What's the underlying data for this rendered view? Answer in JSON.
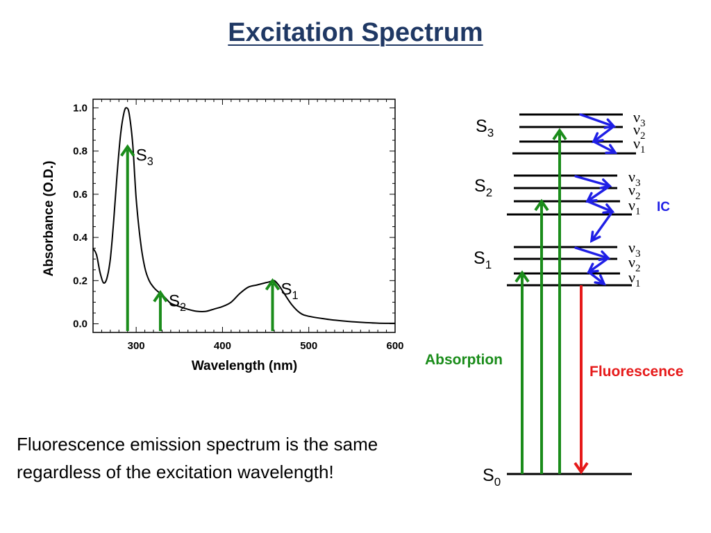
{
  "slide": {
    "title": "Excitation Spectrum",
    "caption": "Fluorescence emission spectrum is the same regardless of the excitation wavelength!"
  },
  "chart_data": {
    "type": "line",
    "xlabel": "Wavelength (nm)",
    "ylabel": "Absorbance (O.D.)",
    "xlim": [
      250,
      600
    ],
    "ylim": [
      -0.04,
      1.04
    ],
    "x_ticks": [
      "300",
      "400",
      "500",
      "600"
    ],
    "y_ticks": [
      "0.0",
      "0.2",
      "0.4",
      "0.6",
      "0.8",
      "1.0"
    ],
    "grid": false,
    "series": [
      {
        "x": [
          250,
          254,
          258,
          262,
          266,
          270,
          274,
          278,
          282,
          286,
          289,
          292,
          296,
          300,
          305,
          310,
          315,
          320,
          325,
          330,
          335,
          340,
          350,
          360,
          370,
          380,
          390,
          400,
          410,
          420,
          430,
          440,
          450,
          455,
          460,
          465,
          470,
          480,
          490,
          500,
          520,
          540,
          560,
          580,
          600
        ],
        "y": [
          0.35,
          0.32,
          0.24,
          0.19,
          0.21,
          0.3,
          0.48,
          0.7,
          0.88,
          0.98,
          1.0,
          0.97,
          0.83,
          0.58,
          0.38,
          0.26,
          0.2,
          0.17,
          0.15,
          0.135,
          0.115,
          0.095,
          0.08,
          0.067,
          0.058,
          0.057,
          0.068,
          0.08,
          0.1,
          0.14,
          0.17,
          0.18,
          0.19,
          0.195,
          0.2,
          0.18,
          0.15,
          0.09,
          0.05,
          0.035,
          0.022,
          0.013,
          0.007,
          0.003,
          0.002
        ]
      }
    ],
    "excitation_arrows": [
      {
        "label": "S",
        "sub": "3",
        "x": 290,
        "y": 0.82
      },
      {
        "label": "S",
        "sub": "2",
        "x": 328,
        "y": 0.145
      },
      {
        "label": "S",
        "sub": "1",
        "x": 458,
        "y": 0.2
      }
    ]
  },
  "diagram": {
    "states": [
      {
        "label": "S",
        "sub": "0"
      },
      {
        "label": "S",
        "sub": "1"
      },
      {
        "label": "S",
        "sub": "2"
      },
      {
        "label": "S",
        "sub": "3"
      }
    ],
    "vib_levels": [
      {
        "label": "ν",
        "sub": "1"
      },
      {
        "label": "ν",
        "sub": "2"
      },
      {
        "label": "ν",
        "sub": "3"
      }
    ],
    "ic_label": "IC",
    "absorption_label": "Absorption",
    "fluorescence_label": "Fluorescence",
    "colors": {
      "absorption": "#1a8c1a",
      "fluorescence": "#e61919",
      "ic": "#1f1fe6",
      "title": "#1f3864"
    }
  }
}
